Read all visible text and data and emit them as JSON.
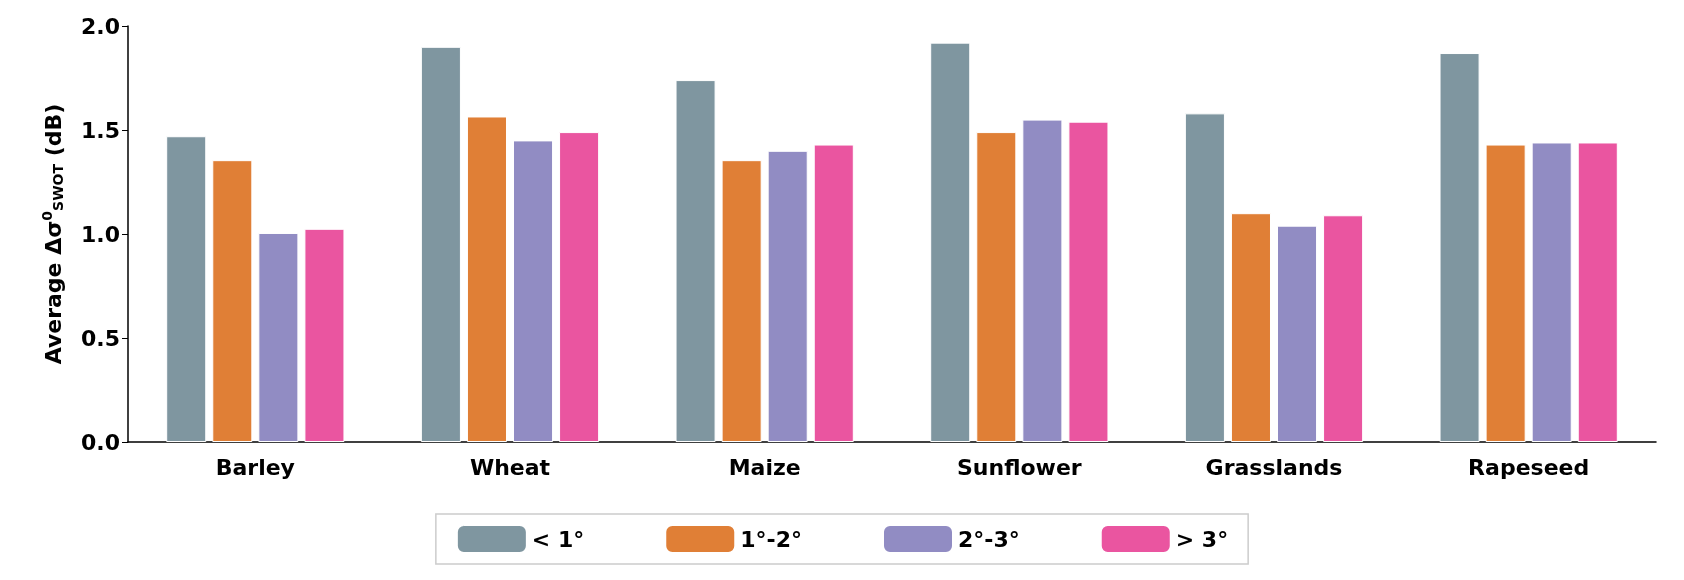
{
  "chart_data": {
    "type": "bar",
    "ylabel": "Average Δσ$^{0}$$_{SWOT}$ (dB)",
    "categories": [
      "Barley",
      "Wheat",
      "Maize",
      "Sunflower",
      "Grasslands",
      "Rapeseed"
    ],
    "series": [
      {
        "name": "< 1°",
        "color": "#7f96a0",
        "values": [
          1.47,
          1.9,
          1.74,
          1.92,
          1.58,
          1.87
        ]
      },
      {
        "name": "1°-2°",
        "color": "#e07f36",
        "values": [
          1.355,
          1.565,
          1.355,
          1.49,
          1.1,
          1.43
        ]
      },
      {
        "name": "2°-3°",
        "color": "#918cc3",
        "values": [
          1.005,
          1.45,
          1.4,
          1.55,
          1.04,
          1.44
        ]
      },
      {
        "name": "> 3°",
        "color": "#ea55a0",
        "values": [
          1.025,
          1.49,
          1.43,
          1.54,
          1.09,
          1.44
        ]
      }
    ],
    "ylim": [
      0,
      2
    ],
    "yticks": [
      {
        "value": 0,
        "label": "0.0"
      },
      {
        "value": 0.5,
        "label": "0.5"
      },
      {
        "value": 1,
        "label": "1.0"
      },
      {
        "value": 1.5,
        "label": "1.5"
      },
      {
        "value": 2,
        "label": "2.0"
      }
    ],
    "grid": false,
    "legend": "bottom"
  }
}
